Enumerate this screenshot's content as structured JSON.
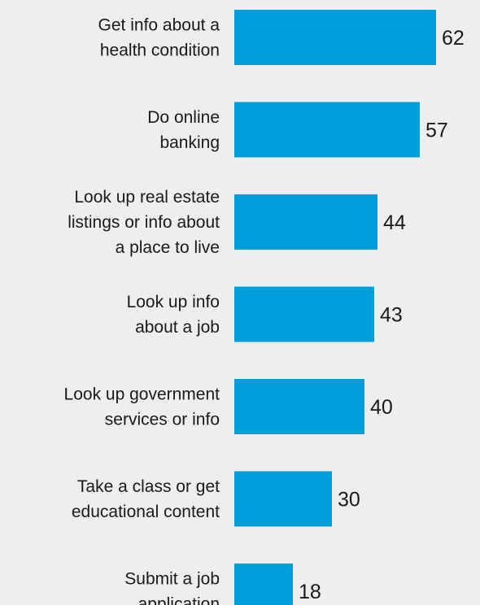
{
  "chart_data": {
    "type": "bar",
    "orientation": "horizontal",
    "categories": [
      [
        "Get info about a",
        "health condition"
      ],
      [
        "Do online",
        "banking"
      ],
      [
        "Look up real estate",
        "listings or info about",
        "a place to live"
      ],
      [
        "Look up info",
        "about a job"
      ],
      [
        "Look up government",
        "services or info"
      ],
      [
        "Take a class or get",
        "educational content"
      ],
      [
        "Submit a job",
        "application"
      ]
    ],
    "values": [
      62,
      57,
      44,
      43,
      40,
      30,
      18
    ],
    "value_labels": [
      "62",
      "57",
      "44",
      "43",
      "40",
      "30",
      "18"
    ],
    "bar_color": "#009fdb",
    "background_color": "#eeeeee",
    "text_color": "#1a1a1a",
    "title": "",
    "xlabel": "",
    "ylabel": "",
    "xlim": [
      0,
      62
    ],
    "grid": false,
    "legend": "none"
  }
}
